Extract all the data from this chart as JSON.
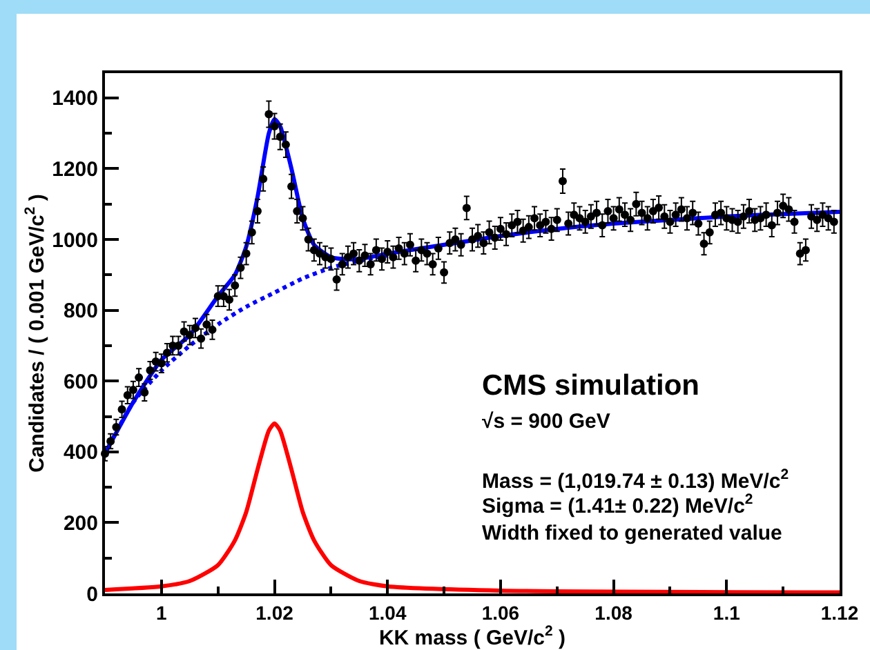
{
  "chart_data": {
    "type": "scatter",
    "xlabel": "KK mass ( GeV/c$^{2}$ )",
    "ylabel": "Candidates / ( 0.001 GeV/c$^{2}$ )",
    "xlim": [
      0.99,
      1.12
    ],
    "xticks": [
      1,
      1.02,
      1.04,
      1.06,
      1.08,
      1.1,
      1.12
    ],
    "ylim": [
      0,
      1470
    ],
    "yticks": [
      0,
      200,
      400,
      600,
      800,
      1000,
      1200,
      1400
    ],
    "grid": false,
    "legend": false,
    "annotations": [
      "CMS simulation",
      "√s = 900 GeV",
      "Mass = (1,019.74 ± 0.13) MeV/c$^{2}$",
      "Sigma = (1.41± 0.22) MeV/c$^{2}$",
      "Width fixed to generated value"
    ],
    "series": [
      {
        "color": "#000000",
        "marker": "circle",
        "x": [
          0.99,
          0.991,
          0.992,
          0.993,
          0.994,
          0.995,
          0.996,
          0.997,
          0.998,
          0.999,
          1.0,
          1.001,
          1.002,
          1.003,
          1.004,
          1.005,
          1.006,
          1.007,
          1.008,
          1.009,
          1.01,
          1.011,
          1.012,
          1.013,
          1.014,
          1.015,
          1.016,
          1.017,
          1.018,
          1.019,
          1.02,
          1.021,
          1.022,
          1.023,
          1.024,
          1.025,
          1.026,
          1.027,
          1.028,
          1.029,
          1.03,
          1.031,
          1.032,
          1.033,
          1.034,
          1.035,
          1.036,
          1.037,
          1.038,
          1.039,
          1.04,
          1.041,
          1.042,
          1.043,
          1.044,
          1.045,
          1.046,
          1.047,
          1.048,
          1.049,
          1.05,
          1.051,
          1.052,
          1.053,
          1.054,
          1.055,
          1.056,
          1.057,
          1.058,
          1.059,
          1.06,
          1.061,
          1.062,
          1.063,
          1.064,
          1.065,
          1.066,
          1.067,
          1.068,
          1.069,
          1.07,
          1.071,
          1.072,
          1.073,
          1.074,
          1.075,
          1.076,
          1.077,
          1.078,
          1.079,
          1.08,
          1.081,
          1.082,
          1.083,
          1.084,
          1.085,
          1.086,
          1.087,
          1.088,
          1.089,
          1.09,
          1.091,
          1.092,
          1.093,
          1.094,
          1.095,
          1.096,
          1.097,
          1.098,
          1.099,
          1.1,
          1.101,
          1.102,
          1.103,
          1.104,
          1.105,
          1.106,
          1.107,
          1.108,
          1.109,
          1.11,
          1.111,
          1.112,
          1.113,
          1.114,
          1.115,
          1.116,
          1.117,
          1.118,
          1.119
        ],
        "values": [
          395,
          430,
          470,
          520,
          560,
          575,
          610,
          568,
          630,
          655,
          650,
          680,
          700,
          700,
          740,
          730,
          750,
          720,
          760,
          745,
          840,
          840,
          830,
          870,
          920,
          960,
          1020,
          1080,
          1171,
          1354,
          1320,
          1290,
          1268,
          1150,
          1080,
          1060,
          1000,
          970,
          960,
          950,
          945,
          887,
          930,
          950,
          960,
          940,
          955,
          930,
          970,
          945,
          965,
          950,
          975,
          960,
          985,
          940,
          970,
          960,
          930,
          975,
          907,
          990,
          1000,
          985,
          1089,
          1000,
          1010,
          990,
          1020,
          1005,
          1030,
          1015,
          1040,
          1050,
          1025,
          1035,
          1060,
          1040,
          1050,
          1030,
          1055,
          1165,
          1045,
          1070,
          1060,
          1050,
          1065,
          1075,
          1040,
          1080,
          1060,
          1085,
          1070,
          1055,
          1100,
          1075,
          1060,
          1080,
          1090,
          1065,
          1050,
          1070,
          1085,
          1060,
          1075,
          1045,
          988,
          1020,
          1070,
          1075,
          1060,
          1055,
          1050,
          1065,
          1080,
          1055,
          1060,
          1070,
          1040,
          1075,
          1095,
          1085,
          1050,
          960,
          970,
          1065,
          1055,
          1070,
          1060,
          1050
        ],
        "errors": [
          20,
          21,
          22,
          23,
          24,
          24,
          25,
          24,
          25,
          26,
          26,
          26,
          26,
          26,
          27,
          27,
          27,
          27,
          28,
          27,
          29,
          29,
          29,
          30,
          30,
          31,
          32,
          33,
          34,
          37,
          36,
          36,
          36,
          34,
          33,
          33,
          32,
          31,
          31,
          31,
          31,
          30,
          30,
          31,
          31,
          31,
          31,
          30,
          31,
          31,
          31,
          31,
          31,
          31,
          31,
          31,
          31,
          31,
          30,
          31,
          30,
          31,
          32,
          31,
          33,
          32,
          32,
          31,
          32,
          32,
          32,
          32,
          32,
          32,
          32,
          32,
          33,
          32,
          32,
          32,
          32,
          34,
          32,
          33,
          33,
          32,
          33,
          33,
          32,
          33,
          33,
          33,
          33,
          32,
          33,
          33,
          33,
          33,
          33,
          33,
          32,
          33,
          33,
          33,
          33,
          32,
          31,
          32,
          33,
          33,
          33,
          32,
          32,
          33,
          33,
          32,
          33,
          33,
          32,
          33,
          33,
          33,
          32,
          31,
          31,
          33,
          32,
          33,
          33,
          32
        ]
      },
      {
        "type": "line",
        "color": "#0000ff",
        "line_style": "solid",
        "x": [
          0.99,
          0.995,
          1.0,
          1.005,
          1.01,
          1.013,
          1.015,
          1.017,
          1.019,
          1.02,
          1.021,
          1.023,
          1.025,
          1.027,
          1.03,
          1.032,
          1.035,
          1.04,
          1.05,
          1.06,
          1.07,
          1.08,
          1.09,
          1.1,
          1.11,
          1.12
        ],
        "values": [
          395,
          540,
          660,
          730,
          840,
          900,
          980,
          1120,
          1300,
          1340,
          1320,
          1200,
          1060,
          985,
          950,
          945,
          945,
          960,
          985,
          1010,
          1030,
          1045,
          1055,
          1065,
          1072,
          1078
        ]
      },
      {
        "type": "line",
        "color": "#0000ff",
        "line_style": "dashed",
        "x": [
          0.99,
          0.995,
          1.0,
          1.005,
          1.01,
          1.015,
          1.02,
          1.025,
          1.03,
          1.035,
          1.04
        ],
        "values": [
          395,
          540,
          630,
          700,
          760,
          810,
          850,
          890,
          920,
          940,
          955
        ]
      },
      {
        "type": "line",
        "color": "#ff0000",
        "line_style": "solid",
        "x": [
          0.99,
          1.0,
          1.005,
          1.01,
          1.013,
          1.015,
          1.017,
          1.019,
          1.02,
          1.021,
          1.023,
          1.025,
          1.027,
          1.03,
          1.035,
          1.04,
          1.06,
          1.12
        ],
        "values": [
          10,
          20,
          35,
          80,
          150,
          230,
          350,
          460,
          480,
          460,
          350,
          230,
          150,
          80,
          35,
          20,
          8,
          3
        ]
      }
    ]
  }
}
